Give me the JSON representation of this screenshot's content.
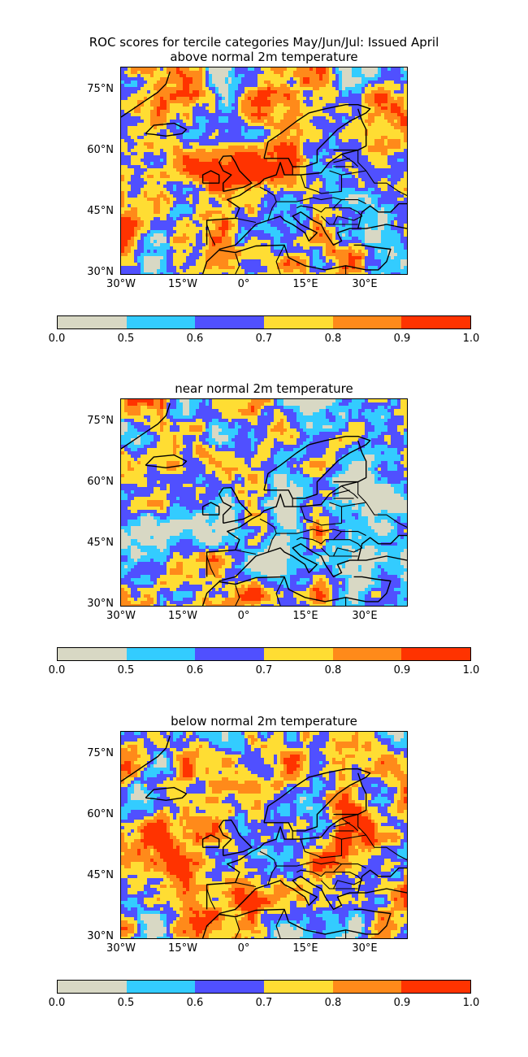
{
  "title": {
    "line1": "ROC scores for tercile categories May/Jun/Jul: Issued April"
  },
  "panels": [
    {
      "id": "above",
      "subtitle": "above normal 2m temperature",
      "seed": 11,
      "bias": 0.28
    },
    {
      "id": "near",
      "subtitle": "near normal 2m temperature",
      "seed": 29,
      "bias": -0.2
    },
    {
      "id": "below",
      "subtitle": "below normal 2m temperature",
      "seed": 47,
      "bias": 0.22
    }
  ],
  "map": {
    "lon_range": [
      -30,
      40
    ],
    "lat_range": [
      30,
      80
    ],
    "lat_ticks": [
      "75°N",
      "60°N",
      "45°N",
      "30°N"
    ],
    "lon_ticks": [
      "30°W",
      "15°W",
      "0°",
      "15°E",
      "30°E"
    ]
  },
  "colorbar": {
    "bounds": [
      "0.0",
      "0.5",
      "0.6",
      "0.7",
      "0.8",
      "0.9",
      "1.0"
    ],
    "colors": [
      "#d8d8c4",
      "#33ccff",
      "#5050ff",
      "#ffdd33",
      "#ff8a1a",
      "#ff3300"
    ]
  },
  "icons": [
    "coastline-map"
  ]
}
